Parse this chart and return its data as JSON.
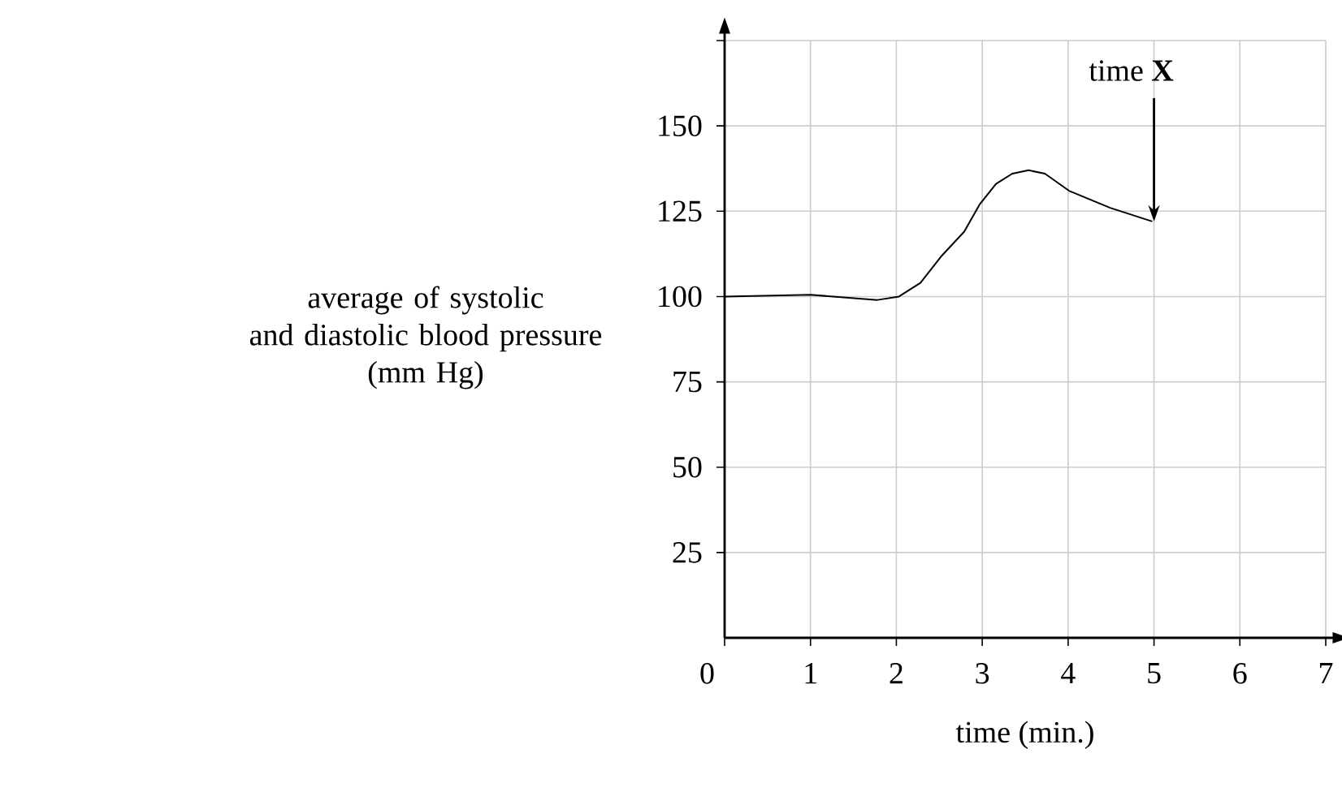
{
  "chart_data": {
    "type": "line",
    "xlabel": "time (min.)",
    "ylabel": "average of systolic and diastolic blood pressure (mm Hg)",
    "x": [
      0,
      1,
      1.78,
      2.03,
      2.28,
      2.53,
      2.79,
      2.97,
      3.16,
      3.35,
      3.54,
      3.73,
      4.01,
      4.49,
      4.98
    ],
    "series": [
      {
        "color": "#000000",
        "values": [
          100,
          100.5,
          99,
          100,
          104,
          112,
          119,
          127,
          133,
          136,
          137,
          136,
          131,
          126,
          122
        ]
      }
    ],
    "xlim": [
      0,
      7
    ],
    "ylim": [
      0,
      175
    ],
    "xticks": [
      {
        "value": 0,
        "label": "0"
      },
      1,
      2,
      3,
      4,
      5,
      6,
      7
    ],
    "yticks": [
      25,
      50,
      75,
      100,
      125,
      150,
      {
        "value": 175,
        "label": null
      }
    ],
    "grid": true,
    "marker": "none",
    "line_style": "solid",
    "annotations": [
      {
        "text": "time **X**",
        "x": 5,
        "y": 122
      }
    ]
  }
}
